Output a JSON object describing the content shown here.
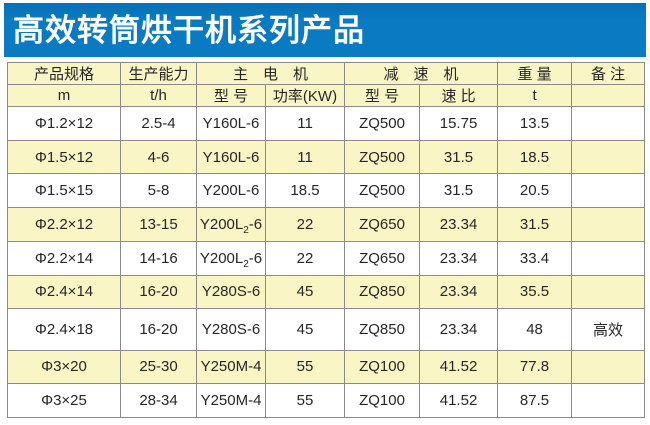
{
  "banner": {
    "title": "高效转筒烘干机系列产品"
  },
  "colors": {
    "banner_bg": "#0a7ac2",
    "banner_text": "#ffffff",
    "header_bg": "#f9f5c4",
    "row_alt_bg": "#f9f5c4",
    "row_bg": "#ffffff",
    "border": "#8a8a8a",
    "text": "#262626"
  },
  "table": {
    "header_row1": {
      "spec": "产品规格",
      "capacity": "生产能力",
      "main_motor": "主　电　机",
      "reducer": "减　速　机",
      "weight": "重 量",
      "remark": "备 注"
    },
    "header_row2": {
      "spec_unit": "m",
      "capacity_unit": "t/h",
      "motor_model": "型 号",
      "motor_power": "功率(KW)",
      "reducer_model": "型 号",
      "speed_ratio": "速 比",
      "weight_unit": "t",
      "remark": ""
    },
    "rows": [
      {
        "spec": "Φ1.2×12",
        "capacity": "2.5-4",
        "motor_pre": "Y160L-6",
        "motor_sub": "",
        "motor_post": "",
        "power": "11",
        "reducer": "ZQ500",
        "ratio": "15.75",
        "weight": "13.5",
        "remark": ""
      },
      {
        "spec": "Φ1.5×12",
        "capacity": "4-6",
        "motor_pre": "Y160L-6",
        "motor_sub": "",
        "motor_post": "",
        "power": "11",
        "reducer": "ZQ500",
        "ratio": "31.5",
        "weight": "18.5",
        "remark": ""
      },
      {
        "spec": "Φ1.5×15",
        "capacity": "5-8",
        "motor_pre": "Y200L-6",
        "motor_sub": "",
        "motor_post": "",
        "power": "18.5",
        "reducer": "ZQ500",
        "ratio": "31.5",
        "weight": "20.5",
        "remark": ""
      },
      {
        "spec": "Φ2.2×12",
        "capacity": "13-15",
        "motor_pre": "Y200L",
        "motor_sub": "2",
        "motor_post": "-6",
        "power": "22",
        "reducer": "ZQ650",
        "ratio": "23.34",
        "weight": "31.5",
        "remark": ""
      },
      {
        "spec": "Φ2.2×14",
        "capacity": "14-16",
        "motor_pre": "Y200L",
        "motor_sub": "2",
        "motor_post": "-6",
        "power": "22",
        "reducer": "ZQ650",
        "ratio": "23.34",
        "weight": "33.4",
        "remark": ""
      },
      {
        "spec": "Φ2.4×14",
        "capacity": "16-20",
        "motor_pre": "Y280S-6",
        "motor_sub": "",
        "motor_post": "",
        "power": "45",
        "reducer": "ZQ850",
        "ratio": "23.34",
        "weight": "35.5",
        "remark": ""
      },
      {
        "spec": "Φ2.4×18",
        "capacity": "16-20",
        "motor_pre": "Y280S-6",
        "motor_sub": "",
        "motor_post": "",
        "power": "45",
        "reducer": "ZQ850",
        "ratio": "23.34",
        "weight": "48",
        "remark": "高效"
      },
      {
        "spec": "Φ3×20",
        "capacity": "25-30",
        "motor_pre": "Y250M-4",
        "motor_sub": "",
        "motor_post": "",
        "power": "55",
        "reducer": "ZQ100",
        "ratio": "41.52",
        "weight": "77.8",
        "remark": ""
      },
      {
        "spec": "Φ3×25",
        "capacity": "28-34",
        "motor_pre": "Y250M-4",
        "motor_sub": "",
        "motor_post": "",
        "power": "55",
        "reducer": "ZQ100",
        "ratio": "41.52",
        "weight": "87.5",
        "remark": ""
      }
    ]
  }
}
